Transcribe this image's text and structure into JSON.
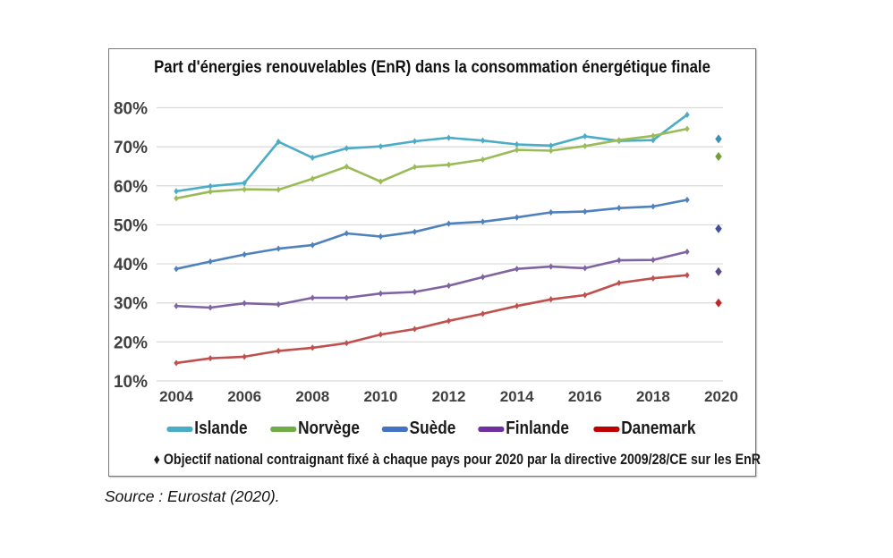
{
  "chart_data": {
    "type": "line",
    "title": "Part d'énergies renouvelables (EnR) dans la consommation énergétique finale",
    "xlabel": "",
    "ylabel": "",
    "x": [
      2004,
      2005,
      2006,
      2007,
      2008,
      2009,
      2010,
      2011,
      2012,
      2013,
      2014,
      2015,
      2016,
      2017,
      2018,
      2019
    ],
    "x_ticks": [
      "2004",
      "2006",
      "2008",
      "2010",
      "2012",
      "2014",
      "2016",
      "2018",
      "2020"
    ],
    "x_tick_values": [
      2004,
      2006,
      2008,
      2010,
      2012,
      2014,
      2016,
      2018,
      2020
    ],
    "xlim": [
      2004,
      2020
    ],
    "y_ticks": [
      "10%",
      "20%",
      "30%",
      "40%",
      "50%",
      "60%",
      "70%",
      "80%"
    ],
    "y_tick_values": [
      10,
      20,
      30,
      40,
      50,
      60,
      70,
      80
    ],
    "ylim": [
      10,
      80
    ],
    "grid": true,
    "legend_position": "bottom",
    "series": [
      {
        "name": "Islande",
        "color": "#4bacc6",
        "target_color": "#3d8fb8",
        "values": [
          58.6,
          59.9,
          60.7,
          71.3,
          67.2,
          69.6,
          70.1,
          71.4,
          72.3,
          71.6,
          70.6,
          70.3,
          72.7,
          71.5,
          71.7,
          78.2
        ],
        "target_2020": 72.0
      },
      {
        "name": "Norvège",
        "color": "#9bbb59",
        "target_color": "#70a03a",
        "values": [
          56.8,
          58.5,
          59.1,
          59.0,
          61.8,
          64.9,
          61.1,
          64.8,
          65.4,
          66.7,
          69.2,
          69.0,
          70.2,
          71.7,
          72.8,
          74.6
        ],
        "target_2020": 67.5
      },
      {
        "name": "Suède",
        "color": "#4f81bd",
        "target_color": "#3f4f9e",
        "values": [
          38.7,
          40.6,
          42.4,
          43.9,
          44.8,
          47.8,
          47.0,
          48.2,
          50.3,
          50.8,
          51.9,
          53.2,
          53.4,
          54.3,
          54.7,
          56.4
        ],
        "target_2020": 49.0
      },
      {
        "name": "Finlande",
        "color": "#8064a2",
        "target_color": "#5c4a8a",
        "values": [
          29.2,
          28.8,
          29.9,
          29.6,
          31.3,
          31.3,
          32.4,
          32.8,
          34.4,
          36.6,
          38.7,
          39.3,
          38.9,
          40.9,
          41.0,
          43.1
        ],
        "target_2020": 38.0
      },
      {
        "name": "Danemark",
        "color": "#c0504d",
        "target_color": "#c0282a",
        "values": [
          14.6,
          15.8,
          16.2,
          17.7,
          18.5,
          19.7,
          21.9,
          23.3,
          25.4,
          27.2,
          29.2,
          30.9,
          32.0,
          35.1,
          36.3,
          37.1
        ],
        "target_2020": 30.0
      }
    ],
    "legend": [
      "Islande",
      "Norvège",
      "Suède",
      "Finlande",
      "Danemark"
    ],
    "legend_swatch_colors": [
      "#4bacc6",
      "#70ad47",
      "#4472c4",
      "#7030a0",
      "#c00000"
    ],
    "annotation": "♦ Objectif national contraignant fixé à chaque pays pour 2020 par la directive 2009/28/CE sur les EnR",
    "gridline_color": "#d9d9d9"
  },
  "source": "Source : Eurostat (2020)."
}
